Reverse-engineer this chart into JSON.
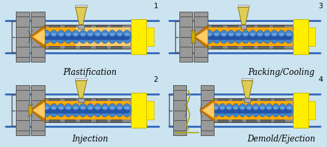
{
  "background_color": "#cce4f0",
  "labels": [
    "Plastification",
    "Injection",
    "Packing/Cooling",
    "Demold/Ejection"
  ],
  "numbers": [
    "1",
    "2",
    "3",
    "4"
  ],
  "barrel_orange_outer": "#cc7700",
  "barrel_orange_inner": "#ffaa00",
  "barrel_orange_light": "#ffcc66",
  "screw_blue": "#4488cc",
  "screw_blue_dark": "#2255aa",
  "screw_blue_light": "#88bbee",
  "mold_gray": "#999999",
  "mold_dark": "#555555",
  "mold_line": "#333333",
  "yellow_block": "#ffee00",
  "yellow_dark": "#ccbb00",
  "hopper_tan": "#bbaa44",
  "hopper_gold": "#ddcc55",
  "tie_bar_blue": "#3366bb",
  "nozzle_dark": "#996600",
  "sprue_gold": "#ccaa00",
  "part_ejected": "#aaaa00",
  "label_fontsize": 8.5,
  "num_fontsize": 7.5
}
